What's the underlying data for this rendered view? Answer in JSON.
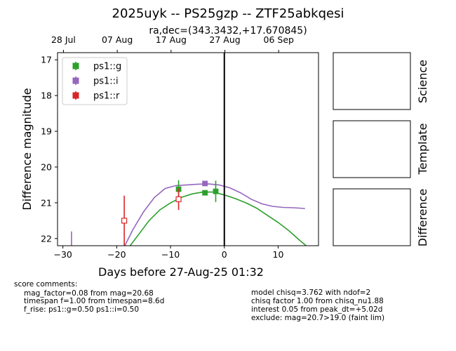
{
  "title": "2025uyk -- PS25gzp -- ZTF25abkqesi",
  "subtitle": "ra,dec=(343.3432,+17.670845)",
  "panel_labels": [
    "Science",
    "Template",
    "Difference"
  ],
  "score_header": "score comments:",
  "score_comments": [
    "mag_factor=0.08 from mag=20.68",
    "timespan f=1.00 from timespan=8.6d",
    "f_rise: ps1::g=0.50 ps1::i=0.50"
  ],
  "model_comments": [
    "model chisq=3.762 with ndof=2",
    "chisq factor 1.00 from chisq_nu1.88",
    "interest 0.05 from peak_dt=+5.02d",
    "exclude: mag=20.7>19.0 (faint lim)"
  ],
  "colors": {
    "g": "#2ca02c",
    "i": "#9467bd",
    "r": "#d62728"
  },
  "chart_data": {
    "type": "scatter",
    "xlabel": "Days before 27-Aug-25 01:32",
    "ylabel": "Difference magnitude",
    "xlim": [
      -31,
      17.5
    ],
    "ylim": [
      22.2,
      16.8
    ],
    "y_inverted": true,
    "x_ticks": [
      -30,
      -20,
      -10,
      0,
      10
    ],
    "y_ticks": [
      17,
      18,
      19,
      20,
      21,
      22
    ],
    "top_axis_ticks": [
      {
        "label": "28 Jul",
        "x": -29.9
      },
      {
        "label": "07 Aug",
        "x": -19.9
      },
      {
        "label": "17 Aug",
        "x": -9.9
      },
      {
        "label": "27 Aug",
        "x": 0.1
      },
      {
        "label": "06 Sep",
        "x": 10.1
      }
    ],
    "legend": {
      "placement": "upper-left",
      "entries": [
        "ps1::g",
        "ps1::i",
        "ps1::r"
      ]
    },
    "vertical_line_x": 0,
    "series": [
      {
        "name": "ps1::g",
        "color_key": "g",
        "marker": "filled-square",
        "points": [
          {
            "x": -8.5,
            "y": 20.62,
            "err": 0.25
          },
          {
            "x": -3.6,
            "y": 20.72,
            "err": 0.07
          },
          {
            "x": -1.6,
            "y": 20.68,
            "err": 0.3
          }
        ]
      },
      {
        "name": "ps1::i",
        "color_key": "i",
        "marker": "filled-square",
        "points": [
          {
            "x": -3.6,
            "y": 20.46,
            "err": 0.07
          },
          {
            "x": -28.4,
            "y": 22.4,
            "err": 0.6
          }
        ]
      },
      {
        "name": "ps1::r",
        "color_key": "r",
        "marker": "open-square",
        "points": [
          {
            "x": -18.6,
            "y": 21.5,
            "err": 0.7
          },
          {
            "x": -8.5,
            "y": 20.9,
            "err": 0.3
          }
        ]
      }
    ],
    "model_curves": [
      {
        "color_key": "g",
        "points": [
          [
            -17.5,
            22.2
          ],
          [
            -16,
            21.9
          ],
          [
            -14,
            21.5
          ],
          [
            -12,
            21.2
          ],
          [
            -10,
            21.0
          ],
          [
            -8,
            20.85
          ],
          [
            -6,
            20.75
          ],
          [
            -4,
            20.7
          ],
          [
            -2,
            20.7
          ],
          [
            0,
            20.78
          ],
          [
            2,
            20.88
          ],
          [
            4,
            21.0
          ],
          [
            6,
            21.15
          ],
          [
            8,
            21.35
          ],
          [
            10,
            21.55
          ],
          [
            12,
            21.78
          ],
          [
            14,
            22.05
          ],
          [
            15.2,
            22.2
          ]
        ]
      },
      {
        "color_key": "i",
        "points": [
          [
            -18.5,
            22.2
          ],
          [
            -17,
            21.75
          ],
          [
            -15,
            21.25
          ],
          [
            -13,
            20.85
          ],
          [
            -11,
            20.6
          ],
          [
            -9,
            20.52
          ],
          [
            -7,
            20.5
          ],
          [
            -5,
            20.48
          ],
          [
            -3,
            20.47
          ],
          [
            -1,
            20.5
          ],
          [
            1,
            20.58
          ],
          [
            3,
            20.72
          ],
          [
            5,
            20.9
          ],
          [
            7,
            21.03
          ],
          [
            9,
            21.1
          ],
          [
            11,
            21.13
          ],
          [
            13,
            21.14
          ],
          [
            15,
            21.16
          ]
        ]
      }
    ]
  }
}
